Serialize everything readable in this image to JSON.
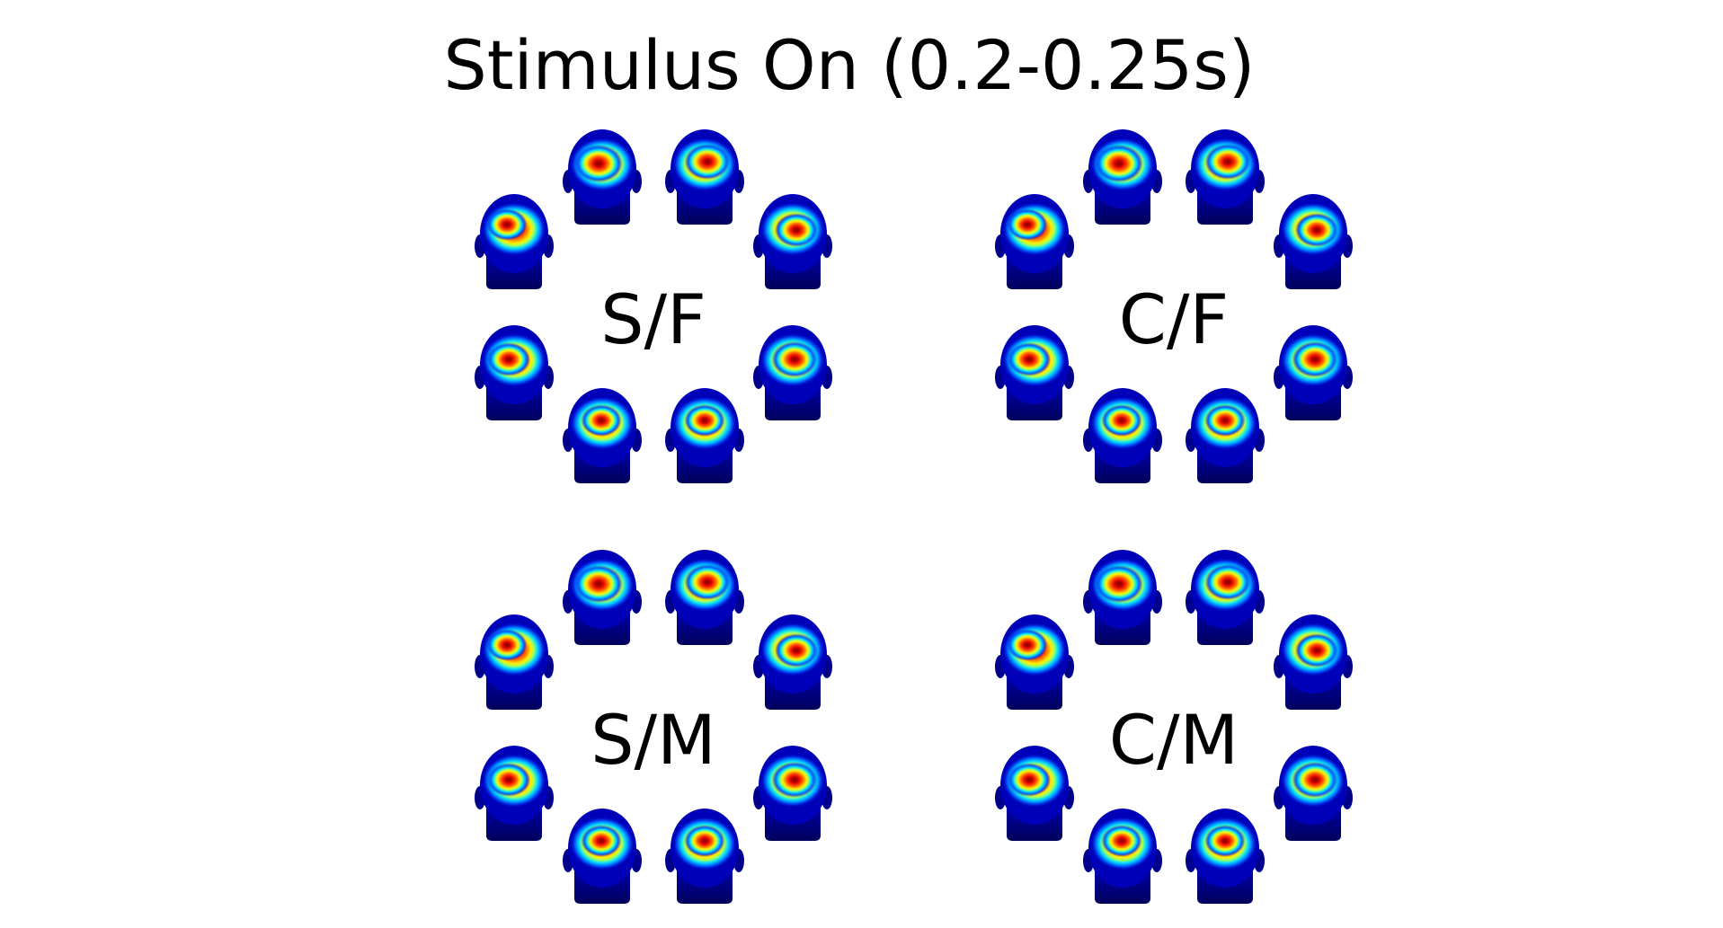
{
  "title": "Stimulus On (0.2-0.25s)",
  "colormap": [
    "#00007f",
    "#0000ff",
    "#00bfff",
    "#7fff7f",
    "#ffff00",
    "#ff7f00",
    "#ff0000",
    "#7f0000"
  ],
  "panels": [
    {
      "label": "S/F",
      "heads": 8
    },
    {
      "label": "C/F",
      "heads": 8
    },
    {
      "label": "S/M",
      "heads": 8
    },
    {
      "label": "C/M",
      "heads": 8
    }
  ]
}
